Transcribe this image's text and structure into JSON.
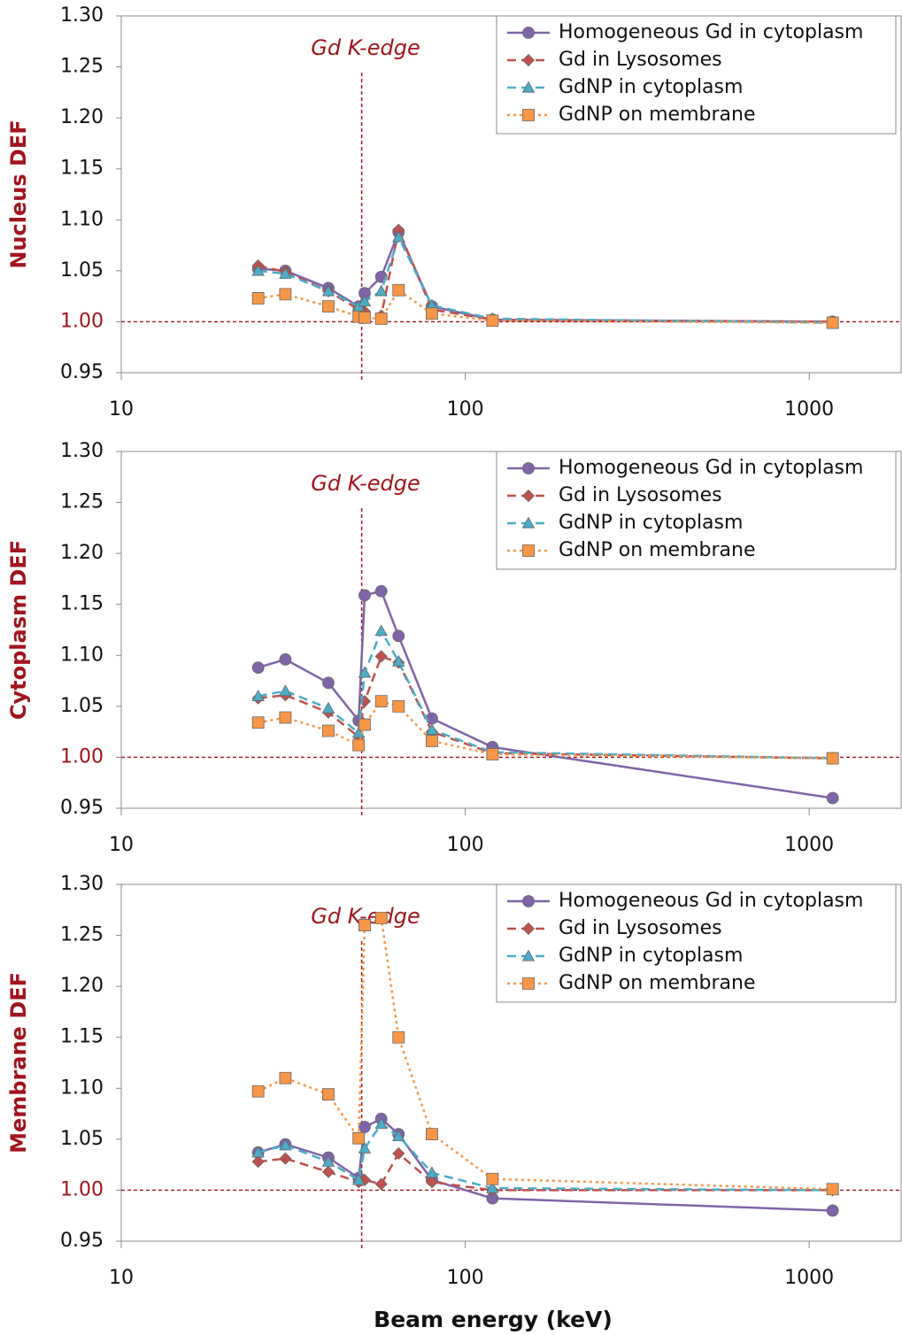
{
  "chart_data": [
    {
      "type": "line",
      "ylabel": "Nucleus DEF",
      "annotation": "Gd K-edge",
      "xscale": "log",
      "xlim": [
        10,
        1850
      ],
      "xticks": [
        10,
        100,
        1000
      ],
      "ylim": [
        0.95,
        1.3
      ],
      "yticks": [
        {
          "value": 0.95,
          "label": "0.95"
        },
        {
          "value": 1.0,
          "label": "1.00"
        },
        {
          "value": 1.05,
          "label": "1.05"
        },
        {
          "value": 1.1,
          "label": "1.10"
        },
        {
          "value": 1.15,
          "label": "1.15"
        },
        {
          "value": 1.2,
          "label": "1.20"
        },
        {
          "value": 1.25,
          "label": "1.25"
        },
        {
          "value": 1.3,
          "label": "1.30"
        }
      ],
      "vline": 50,
      "hline": 1.0,
      "legend": "upper right",
      "x": [
        25,
        30,
        40,
        49,
        51,
        57,
        64,
        80,
        120,
        1170
      ],
      "series": [
        {
          "name": "Homogeneous Gd in cytoplasm",
          "color": "#7f64a8",
          "dash": "solid",
          "marker": "circle",
          "values": [
            1.052,
            1.05,
            1.033,
            1.015,
            1.028,
            1.044,
            1.088,
            1.015,
            1.002,
            1.0
          ]
        },
        {
          "name": "Gd in Lysosomes",
          "color": "#c0504d",
          "dash": "dashed",
          "marker": "diamond",
          "values": [
            1.055,
            1.049,
            1.03,
            1.012,
            1.01,
            1.006,
            1.09,
            1.012,
            1.002,
            1.0
          ]
        },
        {
          "name": "GdNP in cytoplasm",
          "color": "#4bacc6",
          "dash": "dashed",
          "marker": "triangle",
          "values": [
            1.05,
            1.047,
            1.03,
            1.015,
            1.02,
            1.03,
            1.083,
            1.016,
            1.003,
            0.999
          ]
        },
        {
          "name": "GdNP on membrane",
          "color": "#f79646",
          "dash": "dotted",
          "marker": "square",
          "values": [
            1.023,
            1.027,
            1.015,
            1.005,
            1.004,
            1.003,
            1.031,
            1.008,
            1.001,
            0.999
          ]
        }
      ]
    },
    {
      "type": "line",
      "ylabel": "Cytoplasm DEF",
      "annotation": "Gd K-edge",
      "xscale": "log",
      "xlim": [
        10,
        1850
      ],
      "xticks": [
        10,
        100,
        1000
      ],
      "ylim": [
        0.95,
        1.3
      ],
      "yticks": [
        {
          "value": 0.95,
          "label": "0.95"
        },
        {
          "value": 1.0,
          "label": "1.00"
        },
        {
          "value": 1.05,
          "label": "1.05"
        },
        {
          "value": 1.1,
          "label": "1.10"
        },
        {
          "value": 1.15,
          "label": "1.15"
        },
        {
          "value": 1.2,
          "label": "1.20"
        },
        {
          "value": 1.25,
          "label": "1.25"
        },
        {
          "value": 1.3,
          "label": "1.30"
        }
      ],
      "vline": 50,
      "hline": 1.0,
      "legend": "upper right",
      "x": [
        25,
        30,
        40,
        49,
        51,
        57,
        64,
        80,
        120,
        1170
      ],
      "series": [
        {
          "name": "Homogeneous Gd in cytoplasm",
          "color": "#7f64a8",
          "dash": "solid",
          "marker": "circle",
          "values": [
            1.088,
            1.096,
            1.073,
            1.036,
            1.159,
            1.163,
            1.119,
            1.038,
            1.01,
            0.96
          ]
        },
        {
          "name": "Gd in Lysosomes",
          "color": "#c0504d",
          "dash": "dashed",
          "marker": "diamond",
          "values": [
            1.058,
            1.061,
            1.044,
            1.02,
            1.055,
            1.099,
            1.093,
            1.025,
            1.004,
            0.999
          ]
        },
        {
          "name": "GdNP in cytoplasm",
          "color": "#4bacc6",
          "dash": "dashed",
          "marker": "triangle",
          "values": [
            1.06,
            1.065,
            1.048,
            1.024,
            1.083,
            1.124,
            1.094,
            1.027,
            1.005,
            0.999
          ]
        },
        {
          "name": "GdNP on membrane",
          "color": "#f79646",
          "dash": "dotted",
          "marker": "square",
          "values": [
            1.034,
            1.039,
            1.026,
            1.012,
            1.032,
            1.055,
            1.05,
            1.016,
            1.003,
            0.999
          ]
        }
      ]
    },
    {
      "type": "line",
      "ylabel": "Membrane DEF",
      "annotation": "Gd K-edge",
      "xlabel": "Beam energy (keV)",
      "xscale": "log",
      "xlim": [
        10,
        1850
      ],
      "xticks": [
        10,
        100,
        1000
      ],
      "ylim": [
        0.95,
        1.3
      ],
      "yticks": [
        {
          "value": 0.95,
          "label": "0.95"
        },
        {
          "value": 1.0,
          "label": "1.00"
        },
        {
          "value": 1.05,
          "label": "1.05"
        },
        {
          "value": 1.1,
          "label": "1.10"
        },
        {
          "value": 1.15,
          "label": "1.15"
        },
        {
          "value": 1.2,
          "label": "1.20"
        },
        {
          "value": 1.25,
          "label": "1.25"
        },
        {
          "value": 1.3,
          "label": "1.30"
        }
      ],
      "vline": 50,
      "hline": 1.0,
      "legend": "upper right",
      "x": [
        25,
        30,
        40,
        49,
        51,
        57,
        64,
        80,
        120,
        1170
      ],
      "series": [
        {
          "name": "Homogeneous Gd in cytoplasm",
          "color": "#7f64a8",
          "dash": "solid",
          "marker": "circle",
          "values": [
            1.037,
            1.045,
            1.032,
            1.012,
            1.062,
            1.07,
            1.055,
            1.01,
            0.992,
            0.98
          ]
        },
        {
          "name": "Gd in Lysosomes",
          "color": "#c0504d",
          "dash": "dashed",
          "marker": "diamond",
          "values": [
            1.028,
            1.031,
            1.018,
            1.008,
            1.01,
            1.006,
            1.036,
            1.008,
            1.0,
            1.0
          ]
        },
        {
          "name": "GdNP in cytoplasm",
          "color": "#4bacc6",
          "dash": "dashed",
          "marker": "triangle",
          "values": [
            1.037,
            1.044,
            1.028,
            1.01,
            1.041,
            1.065,
            1.053,
            1.017,
            1.002,
            1.0
          ]
        },
        {
          "name": "GdNP on membrane",
          "color": "#f79646",
          "dash": "dotted",
          "marker": "square",
          "values": [
            1.097,
            1.11,
            1.094,
            1.051,
            1.26,
            1.267,
            1.15,
            1.055,
            1.011,
            1.001
          ]
        }
      ]
    }
  ]
}
